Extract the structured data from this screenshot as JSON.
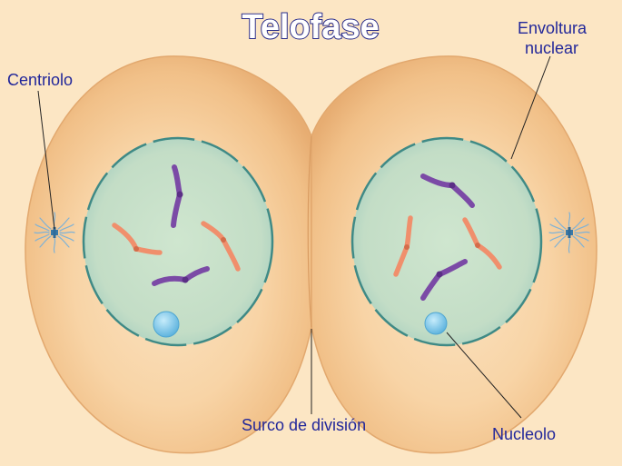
{
  "title": "Telofase",
  "labels": {
    "centriole": "Centriolo",
    "nuclear_envelope_line1": "Envoltura",
    "nuclear_envelope_line2": "nuclear",
    "cleavage_furrow": "Surco de división",
    "nucleolus": "Nucleolo"
  },
  "colors": {
    "background": "#fce6c4",
    "cell_fill": "#f6c995",
    "nucleus_fill": "#cfe3c9",
    "nucleus_border": "#3f8a86",
    "chromosome_purple": "#7b4aa6",
    "chromosome_orange": "#f08f6c",
    "nucleolus_fill": "#7fc5e6",
    "label_text": "#22279a",
    "title_outline": "#2a2d8a"
  }
}
